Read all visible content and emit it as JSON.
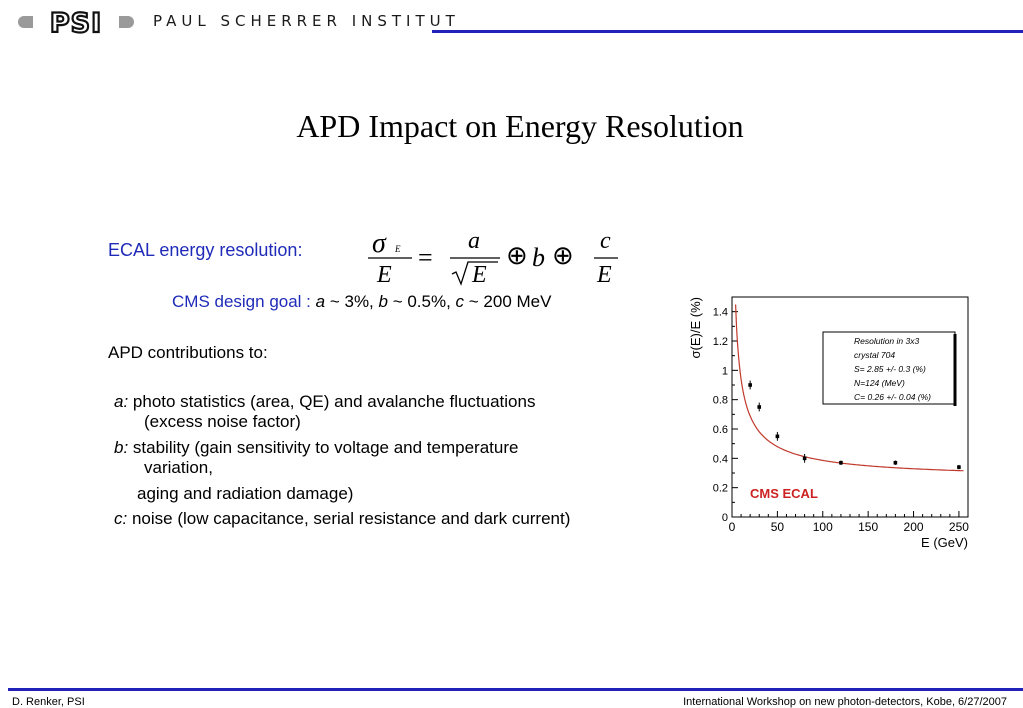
{
  "header": {
    "logo_text": "PSI",
    "institute": "PAUL SCHERRER INSTITUT",
    "brand_color": "#2222bb"
  },
  "title": "APD Impact on Energy Resolution",
  "ecal_label": "ECAL energy resolution:",
  "formula": {
    "sigma": "σ",
    "sub": "E",
    "E": "E",
    "eq": "=",
    "a": "a",
    "b": "b",
    "c": "c",
    "oplus": "⊕"
  },
  "goal": {
    "label": "CMS design goal :",
    "a": "a",
    "a_val": " ~ 3%, ",
    "b": "b",
    "b_val": " ~ 0.5%, ",
    "c": "c",
    "c_val": " ~ 200 MeV"
  },
  "apd_heading": "APD contributions to:",
  "items": [
    {
      "key": "a:",
      "line1": " photo statistics (area, QE) and avalanche fluctuations",
      "line2": "(excess noise factor)"
    },
    {
      "key": "b:",
      "line1": " stability (gain sensitivity to voltage and temperature",
      "line2": "variation,"
    },
    {
      "key": "",
      "line1": "aging and radiation damage)",
      "line2": ""
    },
    {
      "key": "c:",
      "line1": " noise (low capacitance, serial resistance and dark current)",
      "line2": ""
    }
  ],
  "chart_data": {
    "type": "scatter",
    "xlabel": "E (GeV)",
    "ylabel": "σ(E)/E (%)",
    "xlim": [
      0,
      260
    ],
    "ylim": [
      0,
      1.5
    ],
    "xticks": [
      "0",
      "50",
      "100",
      "150",
      "200",
      "250"
    ],
    "yticks": [
      "0",
      "0.2",
      "0.4",
      "0.6",
      "0.8",
      "1",
      "1.2",
      "1.4"
    ],
    "series": [
      {
        "x": [
          20,
          30,
          50,
          80,
          120,
          180,
          250
        ],
        "y": [
          0.9,
          0.75,
          0.55,
          0.4,
          0.37,
          0.37,
          0.34
        ],
        "err": [
          0.03,
          0.03,
          0.03,
          0.03,
          0.015,
          0.015,
          0.015
        ]
      }
    ],
    "fit": {
      "S": 2.85,
      "N": 0.124,
      "C": 0.26
    },
    "fit_color": "#c0392b",
    "legend_box": {
      "lines": [
        "Resolution in 3x3",
        "crystal 704",
        "S= 2.85 +/- 0.3 (%)",
        "N=124 (MeV)",
        "C= 0.26 +/- 0.04 (%)"
      ]
    },
    "annotation": "CMS ECAL",
    "annotation_color": "#cc2222"
  },
  "footer": {
    "left": "D. Renker, PSI",
    "right": "International Workshop on new photon-detectors, Kobe, 6/27/2007"
  }
}
